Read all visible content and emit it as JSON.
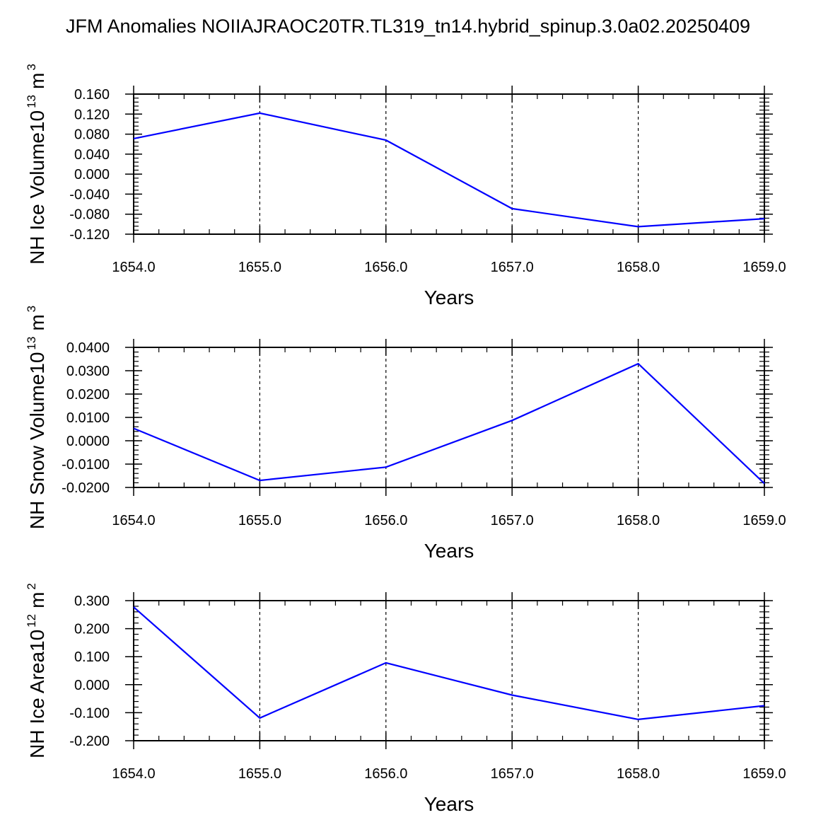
{
  "title": "JFM Anomalies NOIIAJRAOC20TR.TL319_tn14.hybrid_spinup.3.0a02.20250409",
  "colors": {
    "series": "#0000ff",
    "axis": "#000000",
    "grid": "#000000"
  },
  "chart_data": [
    {
      "type": "line",
      "ylabel": "NH Ice Volume",
      "ylabel_unit_base": "10",
      "ylabel_unit_exp": "13",
      "ylabel_unit_m": "m",
      "ylabel_unit_m_exp": "3",
      "xlabel": "Years",
      "xlim": [
        1654.0,
        1659.0
      ],
      "ylim": [
        -0.12,
        0.16
      ],
      "x_ticks": [
        "1654.0",
        "1655.0",
        "1656.0",
        "1657.0",
        "1658.0",
        "1659.0"
      ],
      "y_ticks": [
        {
          "v": 0.16,
          "label": "0.160"
        },
        {
          "v": 0.12,
          "label": "0.120"
        },
        {
          "v": 0.08,
          "label": "0.080"
        },
        {
          "v": 0.04,
          "label": "0.040"
        },
        {
          "v": 0.0,
          "label": "0.000"
        },
        {
          "v": -0.04,
          "label": "-0.040"
        },
        {
          "v": -0.08,
          "label": "-0.080"
        },
        {
          "v": -0.12,
          "label": "-0.120"
        }
      ],
      "grid": "x-dashed",
      "x": [
        1654.0,
        1655.0,
        1656.0,
        1657.0,
        1658.0,
        1659.0
      ],
      "y": [
        0.071,
        0.122,
        0.068,
        -0.069,
        -0.105,
        -0.089
      ]
    },
    {
      "type": "line",
      "ylabel": "NH Snow Volume",
      "ylabel_unit_base": "10",
      "ylabel_unit_exp": "13",
      "ylabel_unit_m": "m",
      "ylabel_unit_m_exp": "3",
      "xlabel": "Years",
      "xlim": [
        1654.0,
        1659.0
      ],
      "ylim": [
        -0.02,
        0.04
      ],
      "x_ticks": [
        "1654.0",
        "1655.0",
        "1656.0",
        "1657.0",
        "1658.0",
        "1659.0"
      ],
      "y_ticks": [
        {
          "v": 0.04,
          "label": "0.0400"
        },
        {
          "v": 0.03,
          "label": "0.0300"
        },
        {
          "v": 0.02,
          "label": "0.0200"
        },
        {
          "v": 0.01,
          "label": "0.0100"
        },
        {
          "v": 0.0,
          "label": "0.0000"
        },
        {
          "v": -0.01,
          "label": "-0.0100"
        },
        {
          "v": -0.02,
          "label": "-0.0200"
        }
      ],
      "grid": "x-dashed",
      "x": [
        1654.0,
        1655.0,
        1656.0,
        1657.0,
        1658.0,
        1659.0
      ],
      "y": [
        0.0053,
        -0.017,
        -0.0113,
        0.0087,
        0.033,
        -0.0183
      ]
    },
    {
      "type": "line",
      "ylabel": "NH Ice Area",
      "ylabel_unit_base": "10",
      "ylabel_unit_exp": "12",
      "ylabel_unit_m": "m",
      "ylabel_unit_m_exp": "2",
      "xlabel": "Years",
      "xlim": [
        1654.0,
        1659.0
      ],
      "ylim": [
        -0.2,
        0.3
      ],
      "x_ticks": [
        "1654.0",
        "1655.0",
        "1656.0",
        "1657.0",
        "1658.0",
        "1659.0"
      ],
      "y_ticks": [
        {
          "v": 0.3,
          "label": "0.300"
        },
        {
          "v": 0.2,
          "label": "0.200"
        },
        {
          "v": 0.1,
          "label": "0.100"
        },
        {
          "v": 0.0,
          "label": "0.000"
        },
        {
          "v": -0.1,
          "label": "-0.100"
        },
        {
          "v": -0.2,
          "label": "-0.200"
        }
      ],
      "grid": "x-dashed",
      "x": [
        1654.0,
        1655.0,
        1656.0,
        1657.0,
        1658.0,
        1659.0
      ],
      "y": [
        0.277,
        -0.119,
        0.078,
        -0.037,
        -0.124,
        -0.075
      ]
    }
  ]
}
